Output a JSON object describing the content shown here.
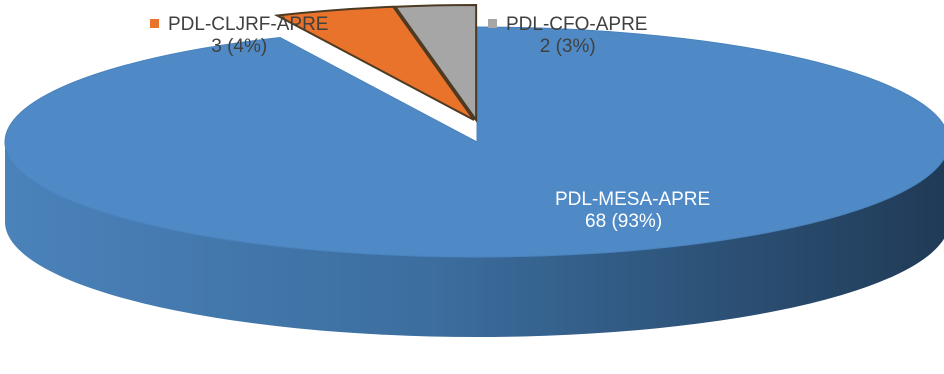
{
  "chart_data": {
    "type": "pie",
    "style": "3d",
    "slices": [
      {
        "name": "PDL-MESA-APRE",
        "value": 68,
        "percent_label": "68 (93%)",
        "color": "#4f8ac6"
      },
      {
        "name": "PDL-CLJRF-APRE",
        "value": 3,
        "percent_label": "3 (4%)",
        "color": "#e9732a"
      },
      {
        "name": "PDL-CFO-APRE",
        "value": 2,
        "percent_label": "2 (3%)",
        "color": "#a6a6a6"
      }
    ],
    "legend": "inline"
  }
}
